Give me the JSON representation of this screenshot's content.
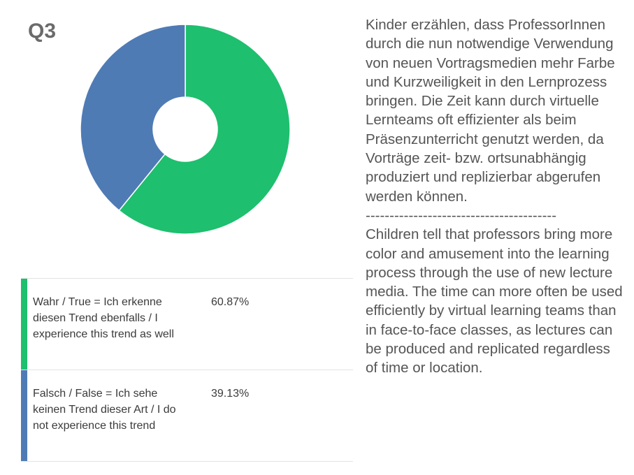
{
  "question_label": "Q3",
  "chart_data": {
    "type": "pie",
    "donut": true,
    "categories": [
      "Wahr / True = Ich erkenne diesen Trend ebenfalls / I experience this trend as well",
      "Falsch / False = Ich sehe keinen Trend dieser Art / I do not experience this trend"
    ],
    "values": [
      60.87,
      39.13
    ],
    "value_labels": [
      "60.87%",
      "39.13%"
    ],
    "colors": [
      "#1ebf6e",
      "#4f7bb5"
    ]
  },
  "legend": [
    {
      "label": "Wahr / True = Ich erkenne diesen Trend ebenfalls / I experience this trend as well",
      "percent": "60.87%",
      "color": "#1ebf6e"
    },
    {
      "label": "Falsch / False = Ich sehe keinen Trend dieser Art / I do not experience this trend",
      "percent": "39.13%",
      "color": "#4f7bb5"
    }
  ],
  "notes": {
    "german": "Kinder erzählen, dass ProfessorInnen durch die nun notwendige Verwendung von neuen Vortragsmedien mehr Farbe und Kurzweiligkeit in den Lernprozess bringen. Die Zeit kann durch virtuelle Lernteams oft effizienter als beim Präsenzunterricht genutzt werden, da Vorträge zeit- bzw. ortsunabhängig produziert und replizierbar abgerufen werden können.",
    "divider": "----------------------------------------",
    "english": "Children tell that professors bring more color and amusement into the learning process through the use of new lecture media. The time can more often be used efficiently by virtual learning teams than in face-to-face classes, as lectures can be produced and replicated regardless of time or location."
  }
}
